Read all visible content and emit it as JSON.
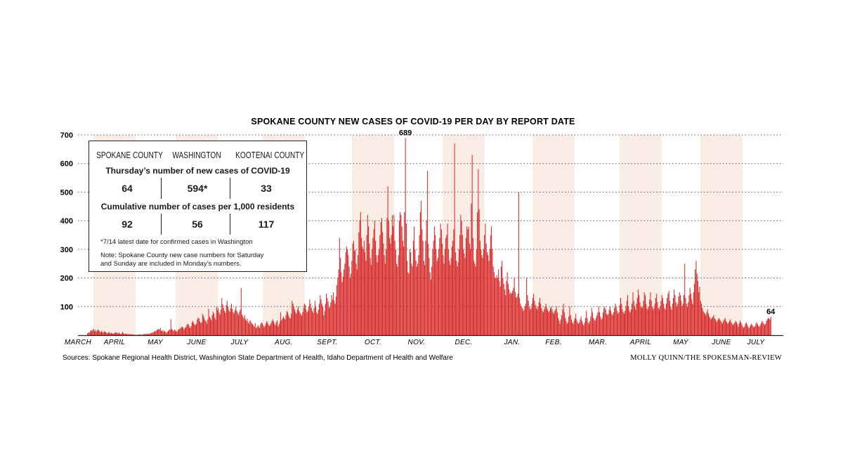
{
  "chart_data": {
    "type": "bar",
    "title": "SPOKANE COUNTY NEW CASES OF COVID-19 PER DAY BY REPORT DATE",
    "ylim": [
      0,
      700
    ],
    "yticks": [
      100,
      200,
      300,
      400,
      500,
      600,
      700
    ],
    "grid": "dotted horizontal",
    "months": [
      "MARCH",
      "APRIL",
      "MAY",
      "JUNE",
      "JULY",
      "AUG.",
      "SEPT.",
      "OCT.",
      "NOV.",
      "DEC.",
      "JAN.",
      "FEB.",
      "MAR.",
      "APRIL",
      "MAY",
      "JUNE",
      "JULY"
    ],
    "annotations": [
      {
        "text": "689",
        "value": 689
      },
      {
        "text": "64",
        "value": 64
      }
    ],
    "series_color": "#d42020",
    "values": [
      0,
      0,
      0,
      0,
      0,
      0,
      0,
      0,
      5,
      10,
      8,
      12,
      18,
      15,
      20,
      22,
      14,
      18,
      12,
      16,
      20,
      17,
      13,
      10,
      15,
      11,
      9,
      14,
      12,
      10,
      8,
      7,
      9,
      11,
      6,
      8,
      7,
      5,
      6,
      9,
      8,
      10,
      7,
      6,
      9,
      5,
      4,
      6,
      12,
      7,
      5,
      4,
      6,
      3,
      5,
      2,
      3,
      4,
      2,
      3,
      2,
      2,
      1,
      2,
      1,
      1,
      2,
      3,
      2,
      1,
      2,
      3,
      2,
      4,
      5,
      3,
      4,
      6,
      4,
      5,
      7,
      8,
      9,
      10,
      12,
      15,
      14,
      18,
      20,
      22,
      19,
      25,
      16,
      14,
      18,
      12,
      15,
      10,
      8,
      12,
      15,
      18,
      20,
      55,
      22,
      18,
      15,
      20,
      16,
      14,
      12,
      18,
      20,
      22,
      25,
      28,
      30,
      26,
      20,
      25,
      28,
      35,
      40,
      38,
      30,
      25,
      32,
      45,
      50,
      42,
      38,
      35,
      40,
      55,
      62,
      58,
      48,
      42,
      45,
      75,
      68,
      60,
      52,
      48,
      40,
      55,
      92,
      65,
      58,
      52,
      70,
      82,
      75,
      62,
      55,
      100,
      88,
      95,
      80,
      72,
      90,
      130,
      108,
      95,
      85,
      78,
      105,
      120,
      100,
      88,
      82,
      95,
      110,
      92,
      80,
      75,
      88,
      100,
      85,
      78,
      70,
      82,
      90,
      165,
      72,
      65,
      60,
      70,
      55,
      50,
      58,
      45,
      40,
      52,
      48,
      42,
      38,
      35,
      30,
      42,
      25,
      28,
      35,
      30,
      25,
      38,
      45,
      42,
      35,
      28,
      32,
      40,
      48,
      45,
      38,
      32,
      35,
      42,
      50,
      55,
      48,
      40,
      35,
      45,
      52,
      30,
      38,
      46,
      80,
      52,
      58,
      65,
      60,
      55,
      70,
      85,
      80,
      70,
      62,
      58,
      75,
      120,
      110,
      100,
      90,
      80,
      75,
      90,
      100,
      85,
      78,
      72,
      68,
      80,
      95,
      110,
      105,
      90,
      80,
      85,
      100,
      125,
      110,
      95,
      85,
      78,
      95,
      120,
      100,
      80,
      75,
      90,
      110,
      140,
      125,
      110,
      100,
      70,
      85,
      110,
      145,
      130,
      118,
      95,
      100,
      115,
      140,
      125,
      150,
      120,
      110,
      135,
      175,
      200,
      230,
      340,
      270,
      220,
      185,
      205,
      230,
      250,
      290,
      310,
      300,
      280,
      240,
      200,
      215,
      260,
      320,
      330,
      295,
      300,
      250,
      230,
      280,
      360,
      400,
      430,
      340,
      310,
      300,
      330,
      290,
      260,
      350,
      420,
      380,
      320,
      270,
      245,
      300,
      340,
      370,
      400,
      330,
      280,
      255,
      280,
      300,
      350,
      395,
      410,
      360,
      320,
      280,
      250,
      300,
      410,
      520,
      400,
      340,
      320,
      350,
      420,
      380,
      420,
      330,
      300,
      250,
      240,
      280,
      400,
      430,
      420,
      380,
      330,
      310,
      430,
      689,
      390,
      260,
      220,
      215,
      300,
      290,
      250,
      240,
      330,
      380,
      300,
      260,
      240,
      250,
      280,
      350,
      430,
      470,
      370,
      330,
      260,
      245,
      330,
      400,
      575,
      320,
      270,
      220,
      195,
      240,
      300,
      330,
      380,
      350,
      300,
      260,
      270,
      300,
      340,
      390,
      370,
      320,
      280,
      250,
      300,
      340,
      350,
      390,
      300,
      260,
      245,
      270,
      310,
      330,
      370,
      670,
      290,
      260,
      240,
      255,
      300,
      350,
      420,
      400,
      350,
      300,
      285,
      270,
      340,
      380,
      370,
      380,
      320,
      300,
      460,
      630,
      340,
      260,
      250,
      240,
      300,
      430,
      580,
      440,
      330,
      300,
      280,
      270,
      300,
      350,
      390,
      320,
      290,
      280,
      260,
      300,
      350,
      380,
      300,
      240,
      220,
      200,
      200,
      210,
      200,
      230,
      190,
      170,
      240,
      260,
      200,
      180,
      160,
      140,
      190,
      220,
      180,
      160,
      145,
      150,
      145,
      155,
      165,
      200,
      150,
      130,
      135,
      145,
      500,
      130,
      110,
      100,
      95,
      85,
      90,
      100,
      110,
      200,
      140,
      120,
      100,
      90,
      95,
      110,
      130,
      145,
      120,
      105,
      95,
      90,
      100,
      115,
      130,
      110,
      95,
      85,
      80,
      90,
      100,
      110,
      95,
      88,
      80,
      85,
      95,
      100,
      90,
      80,
      75,
      85,
      90,
      100,
      80,
      60,
      50,
      40,
      55,
      70,
      90,
      110,
      80,
      60,
      50,
      40,
      45,
      65,
      100,
      70,
      55,
      45,
      40,
      50,
      60,
      75,
      55,
      45,
      40,
      45,
      55,
      65,
      50,
      40,
      35,
      45,
      60,
      85,
      60,
      45,
      40,
      50,
      65,
      95,
      80,
      60,
      55,
      50,
      60,
      70,
      80,
      100,
      80,
      65,
      55,
      60,
      80,
      95,
      100,
      90,
      75,
      70,
      75,
      90,
      100,
      85,
      75,
      70,
      80,
      95,
      110,
      100,
      85,
      75,
      80,
      105,
      130,
      110,
      90,
      80,
      75,
      85,
      100,
      120,
      140,
      100,
      85,
      80,
      90,
      110,
      150,
      120,
      100,
      90,
      110,
      130,
      160,
      140,
      115,
      100,
      95,
      100,
      120,
      150,
      140,
      110,
      95,
      90,
      100,
      125,
      150,
      120,
      100,
      90,
      95,
      110,
      130,
      145,
      115,
      95,
      90,
      100,
      120,
      140,
      130,
      110,
      95,
      90,
      110,
      130,
      145,
      155,
      120,
      100,
      90,
      110,
      130,
      160,
      140,
      115,
      100,
      110,
      135,
      150,
      140,
      120,
      100,
      110,
      140,
      250,
      130,
      110,
      100,
      115,
      140,
      165,
      145,
      125,
      110,
      150,
      180,
      230,
      260,
      215,
      190,
      150,
      170,
      120,
      110,
      95,
      85,
      80,
      75,
      70,
      80,
      90,
      75,
      65,
      60,
      55,
      60,
      65,
      70,
      60,
      55,
      45,
      50,
      55,
      60,
      55,
      50,
      45,
      40,
      50,
      55,
      60,
      50,
      45,
      40,
      45,
      50,
      55,
      45,
      40,
      35,
      40,
      45,
      50,
      45,
      38,
      30,
      40,
      50,
      45,
      38,
      30,
      25,
      30,
      40,
      45,
      38,
      30,
      25,
      28,
      35,
      40,
      35,
      30,
      28,
      32,
      40,
      45,
      38,
      32,
      30,
      35,
      42,
      50,
      45,
      40,
      35,
      40,
      50,
      55,
      60,
      58,
      55,
      64
    ]
  },
  "stats_box": {
    "columns": [
      "SPOKANE COUNTY",
      "WASHINGTON",
      "KOOTENAI COUNTY"
    ],
    "row1_title": "Thursday’s number of new cases of COVID-19",
    "row1_values": [
      "64",
      "594*",
      "33"
    ],
    "row2_title": "Cumulative number of cases per 1,000 residents",
    "row2_values": [
      "92",
      "56",
      "117"
    ],
    "footnote": "*7/14 latest date for confirmed cases in Washington",
    "note_line1": "Note: Spokane County new case numbers for Saturday",
    "note_line2": "and Sunday are included in Monday’s numbers."
  },
  "footer": {
    "sources": "Sources: Spokane Regional Health District, Washington State Department of Health, Idaho Department of Health and Welfare",
    "credit": "MOLLY QUINN/THE SPOKESMAN-REVIEW"
  }
}
